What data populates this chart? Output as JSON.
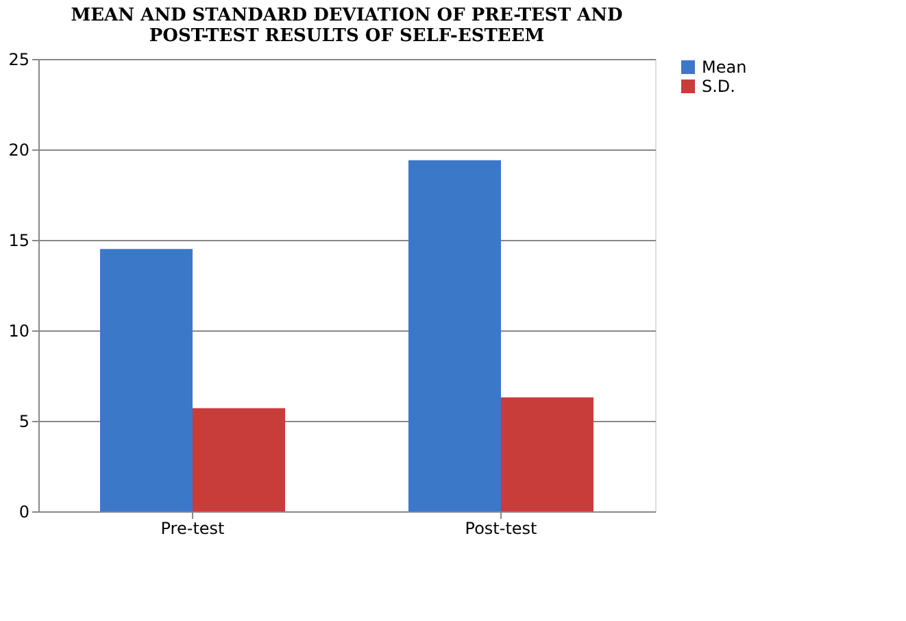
{
  "chart_data": {
    "type": "bar",
    "title": [
      "MEAN AND STANDARD DEVIATION OF PRE-TEST AND",
      "POST-TEST RESULTS OF SELF-ESTEEM"
    ],
    "categories": [
      "Pre-test",
      "Post-test"
    ],
    "series": [
      {
        "name": "Mean",
        "color": "#3c78c8",
        "values": [
          14.5,
          19.4
        ]
      },
      {
        "name": "S.D.",
        "color": "#c83c3a",
        "values": [
          5.7,
          6.3
        ]
      }
    ],
    "ylim": [
      0,
      25
    ],
    "yticks": [
      0,
      5,
      10,
      15,
      20,
      25
    ],
    "grid": "y",
    "legend": "right"
  }
}
